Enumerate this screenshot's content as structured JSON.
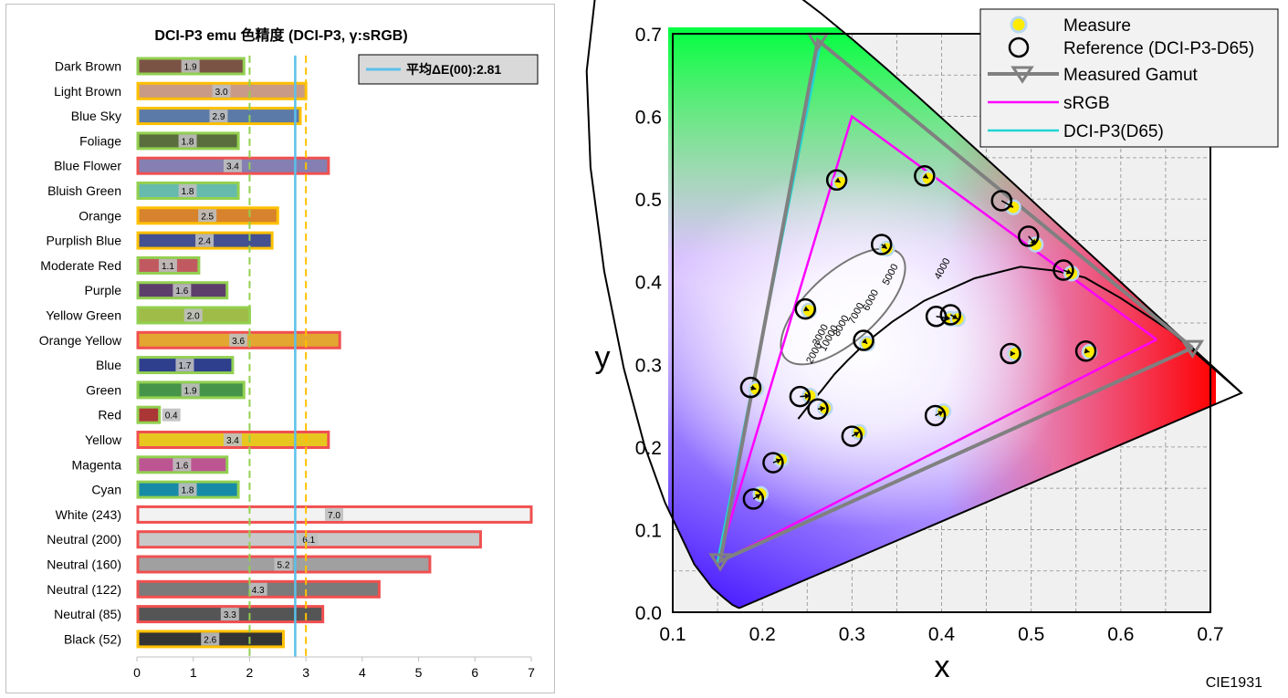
{
  "chart_data": [
    {
      "type": "bar",
      "title": "DCI-P3 emu 色精度 (DCI-P3, γ:sRGB)",
      "xlim": [
        0,
        7
      ],
      "x_ticks": [
        "0",
        "1",
        "2",
        "3",
        "4",
        "5",
        "6",
        "7"
      ],
      "grid": false,
      "legend": {
        "label": "平均ΔE(00):2.81",
        "position": "top-right"
      },
      "average_line": 2.81,
      "threshold_lines": [
        2.0,
        3.0
      ],
      "categories": [
        "Dark Brown",
        "Light Brown",
        "Blue Sky",
        "Foliage",
        "Blue Flower",
        "Bluish Green",
        "Orange",
        "Purplish Blue",
        "Moderate Red",
        "Purple",
        "Yellow Green",
        "Orange Yellow",
        "Blue",
        "Green",
        "Red",
        "Yellow",
        "Magenta",
        "Cyan",
        "White (243)",
        "Neutral (200)",
        "Neutral (160)",
        "Neutral (122)",
        "Neutral (85)",
        "Black (52)"
      ],
      "values": [
        1.9,
        3.0,
        2.9,
        1.8,
        3.4,
        1.8,
        2.5,
        2.4,
        1.1,
        1.6,
        2.0,
        3.6,
        1.7,
        1.9,
        0.4,
        3.4,
        1.6,
        1.8,
        7.0,
        6.1,
        5.2,
        4.3,
        3.3,
        2.6
      ],
      "value_labels": [
        "1.9",
        "3.0",
        "2.9",
        "1.8",
        "3.4",
        "1.8",
        "2.5",
        "2.4",
        "1.1",
        "1.6",
        "2.0",
        "3.6",
        "1.7",
        "1.9",
        "0.4",
        "3.4",
        "1.6",
        "1.8",
        "7.0",
        "6.1",
        "5.2",
        "4.3",
        "3.3",
        "2.6"
      ],
      "bar_colors": [
        "#7b5344",
        "#c99a85",
        "#5c7aa7",
        "#5a6e3d",
        "#8580b1",
        "#66bbad",
        "#d7822d",
        "#44508f",
        "#c15a60",
        "#5d3e6b",
        "#a0bc48",
        "#e3a630",
        "#2e3f8e",
        "#469449",
        "#ab3636",
        "#e7c71f",
        "#bd5593",
        "#178aa6",
        "#f2f2f2",
        "#c8c8c8",
        "#a0a0a0",
        "#7a7a7a",
        "#555555",
        "#343434"
      ],
      "border_colors": {
        "good": "#92d050",
        "fair": "#ffc000",
        "poor": "#f05050"
      },
      "colors": {
        "average_line": "#5bc0eb",
        "green_dash": "#92d050",
        "orange_dash": "#ffc000"
      }
    },
    {
      "type": "scatter",
      "xlabel": "x",
      "ylabel": "y",
      "xlim": [
        0.1,
        0.7
      ],
      "ylim": [
        0.0,
        0.7
      ],
      "x_ticks": [
        "0.1",
        "0.2",
        "0.3",
        "0.4",
        "0.5",
        "0.6",
        "0.7"
      ],
      "y_ticks": [
        "0.0",
        "0.1",
        "0.2",
        "0.3",
        "0.4",
        "0.5",
        "0.6",
        "0.7"
      ],
      "grid": true,
      "corner_label": "CIE1931",
      "legend": {
        "position": "top-right",
        "entries": [
          "Measure",
          "Reference (DCI-P3-D65)",
          "Measured Gamut",
          "sRGB",
          "DCI-P3(D65)"
        ]
      },
      "locus_temperature_labels": [
        "2000",
        "3000",
        "4000",
        "5000",
        "6000",
        "7000",
        "8000",
        "10000"
      ],
      "series": [
        {
          "name": "sRGB",
          "color": "#ff00ff",
          "points": [
            [
              0.64,
              0.33
            ],
            [
              0.3,
              0.6
            ],
            [
              0.15,
              0.06
            ]
          ]
        },
        {
          "name": "DCI-P3(D65)",
          "color": "#21d4d4",
          "points": [
            [
              0.68,
              0.32
            ],
            [
              0.265,
              0.69
            ],
            [
              0.15,
              0.06
            ]
          ]
        },
        {
          "name": "Measured Gamut",
          "color": "#808080",
          "points": [
            [
              0.68,
              0.32
            ],
            [
              0.262,
              0.692
            ],
            [
              0.153,
              0.062
            ]
          ]
        },
        {
          "name": "Measure",
          "color": "#ffeb00",
          "points": [
            [
              0.287,
              0.52
            ],
            [
              0.385,
              0.525
            ],
            [
              0.48,
              0.49
            ],
            [
              0.505,
              0.445
            ],
            [
              0.545,
              0.41
            ],
            [
              0.339,
              0.44
            ],
            [
              0.252,
              0.365
            ],
            [
              0.41,
              0.355
            ],
            [
              0.418,
              0.355
            ],
            [
              0.317,
              0.325
            ],
            [
              0.482,
              0.313
            ],
            [
              0.565,
              0.315
            ],
            [
              0.193,
              0.27
            ],
            [
              0.253,
              0.262
            ],
            [
              0.27,
              0.247
            ],
            [
              0.308,
              0.218
            ],
            [
              0.402,
              0.243
            ],
            [
              0.221,
              0.185
            ],
            [
              0.198,
              0.143
            ]
          ]
        },
        {
          "name": "Reference (DCI-P3-D65)",
          "points": [
            [
              0.283,
              0.523
            ],
            [
              0.381,
              0.528
            ],
            [
              0.467,
              0.498
            ],
            [
              0.497,
              0.455
            ],
            [
              0.536,
              0.414
            ],
            [
              0.333,
              0.445
            ],
            [
              0.248,
              0.367
            ],
            [
              0.394,
              0.358
            ],
            [
              0.41,
              0.36
            ],
            [
              0.313,
              0.329
            ],
            [
              0.477,
              0.313
            ],
            [
              0.561,
              0.316
            ],
            [
              0.187,
              0.272
            ],
            [
              0.242,
              0.261
            ],
            [
              0.262,
              0.246
            ],
            [
              0.3,
              0.213
            ],
            [
              0.393,
              0.238
            ],
            [
              0.212,
              0.181
            ],
            [
              0.19,
              0.137
            ]
          ]
        }
      ]
    }
  ]
}
